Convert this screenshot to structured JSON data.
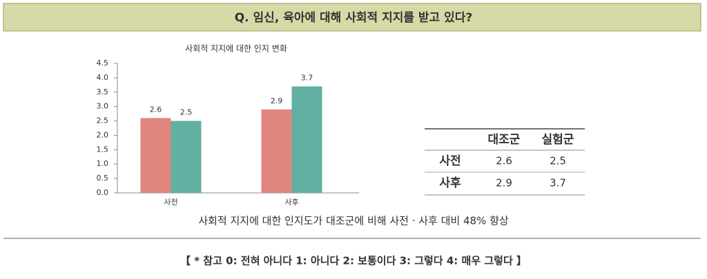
{
  "header": {
    "title": "Q. 임신, 육아에 대해 사회적 지지를 받고 있다?"
  },
  "chart_data": {
    "type": "bar",
    "title": "사회적 지지에 대한 인지 변화",
    "categories": [
      "사전",
      "사후"
    ],
    "series": [
      {
        "color": "#e0867f",
        "values": [
          2.6,
          2.9
        ]
      },
      {
        "color": "#62b0a1",
        "values": [
          2.5,
          3.7
        ]
      }
    ],
    "ylim": [
      0,
      4.5
    ],
    "yticks": [
      {
        "value": 0,
        "label": "0.0"
      },
      0.5,
      {
        "value": 1,
        "label": "1.0"
      },
      1.5,
      {
        "value": 2,
        "label": "2.0"
      },
      2.5,
      {
        "value": 3,
        "label": "3.0"
      },
      3.5,
      {
        "value": 4,
        "label": "4.0"
      },
      4.5
    ],
    "grid": false
  },
  "table": {
    "columns": [
      "대조군",
      "실험군"
    ],
    "rows": [
      {
        "label": "사전",
        "values": [
          2.6,
          2.5
        ]
      },
      {
        "label": "사후",
        "values": [
          2.9,
          3.7
        ]
      }
    ]
  },
  "caption": "사회적 지지에 대한 인지도가 대조군에 비해 사전 · 사후 대비 48% 향상",
  "footnote": "【 * 참고 0: 전혀 아니다 1: 아니다 2: 보통이다 3: 그렇다 4: 매우 그렇다 】"
}
